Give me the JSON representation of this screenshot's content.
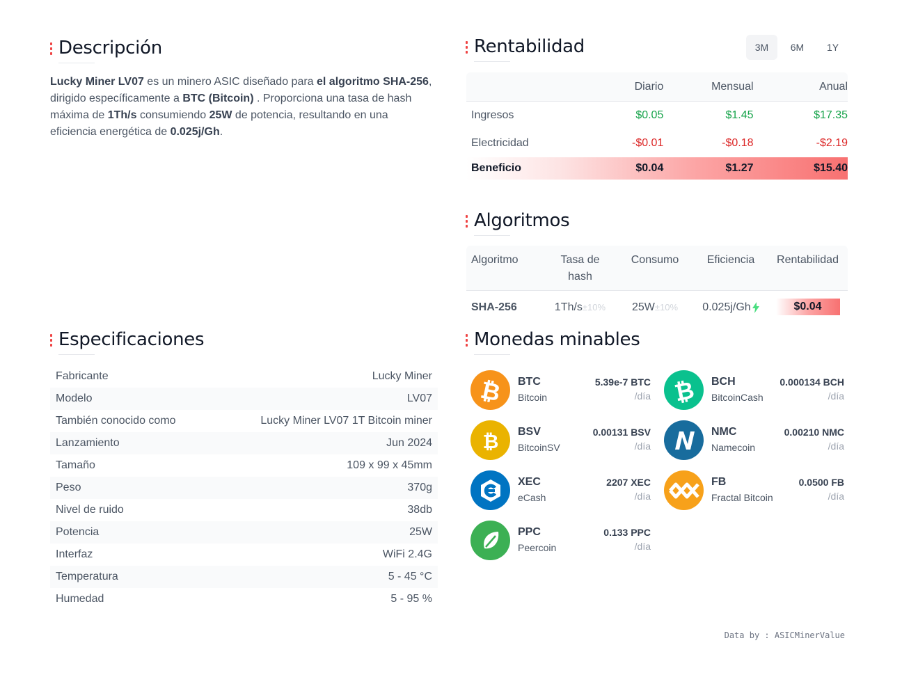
{
  "descripcion": {
    "title": "Descripción",
    "p1_bold": "Lucky Miner LV07",
    "p2": " es un minero ASIC diseñado para ",
    "p3_bold": "el algoritmo SHA-256",
    "p4": ", dirigido específicamente a ",
    "p5_bold": "BTC (Bitcoin)",
    "p6": " . Proporciona una tasa de hash máxima de ",
    "p7_bold": "1Th/s",
    "p8": " consumiendo ",
    "p9_bold": "25W",
    "p10": " de potencia, resultando en una eficiencia energética de ",
    "p11_bold": "0.025j/Gh",
    "p12": "."
  },
  "rentabilidad": {
    "title": "Rentabilidad",
    "periods": [
      "3M",
      "6M",
      "1Y"
    ],
    "active_period": "3M",
    "headers": [
      "",
      "Diario",
      "Mensual",
      "Anual"
    ],
    "rows": [
      {
        "label": "Ingresos",
        "daily": "$0.05",
        "monthly": "$1.45",
        "annual": "$17.35"
      },
      {
        "label": "Electricidad",
        "daily": "-$0.01",
        "monthly": "-$0.18",
        "annual": "-$2.19"
      },
      {
        "label": "Beneficio",
        "daily": "$0.04",
        "monthly": "$1.27",
        "annual": "$15.40"
      }
    ]
  },
  "algoritmos": {
    "title": "Algoritmos",
    "headers": [
      "Algoritmo",
      "Tasa de hash",
      "Consumo",
      "Eficiencia",
      "Rentabilidad"
    ],
    "row": {
      "name": "SHA-256",
      "hashrate": "1Th/s",
      "hashrate_tol": "±10%",
      "power": "25W",
      "power_tol": "±10%",
      "efficiency": "0.025j/Gh",
      "profit": "$0.04"
    }
  },
  "especificaciones": {
    "title": "Especificaciones",
    "rows": [
      {
        "label": "Fabricante",
        "value": "Lucky Miner"
      },
      {
        "label": "Modelo",
        "value": "LV07"
      },
      {
        "label": "También conocido como",
        "value": "Lucky Miner LV07 1T Bitcoin miner"
      },
      {
        "label": "Lanzamiento",
        "value": "Jun 2024"
      },
      {
        "label": "Tamaño",
        "value": "109 x 99 x 45mm"
      },
      {
        "label": "Peso",
        "value": "370g"
      },
      {
        "label": "Nivel de ruido",
        "value": "38db"
      },
      {
        "label": "Potencia",
        "value": "25W"
      },
      {
        "label": "Interfaz",
        "value": "WiFi 2.4G"
      },
      {
        "label": "Temperatura",
        "value": "5 - 45 °C"
      },
      {
        "label": "Humedad",
        "value": "5 - 95 %"
      }
    ]
  },
  "monedas": {
    "title": "Monedas minables",
    "per_day": "/día",
    "coins": [
      {
        "symbol": "BTC",
        "name": "Bitcoin",
        "amount": "5.39e-7 BTC",
        "color": "#f7931a",
        "icon": "bitcoin-icon"
      },
      {
        "symbol": "BCH",
        "name": "BitcoinCash",
        "amount": "0.000134 BCH",
        "color": "#0ac18e",
        "icon": "bitcoin-cash-icon"
      },
      {
        "symbol": "BSV",
        "name": "BitcoinSV",
        "amount": "0.00131 BSV",
        "color": "#eab300",
        "icon": "bitcoin-sv-icon"
      },
      {
        "symbol": "NMC",
        "name": "Namecoin",
        "amount": "0.00210 NMC",
        "color": "#186c9d",
        "icon": "namecoin-icon"
      },
      {
        "symbol": "XEC",
        "name": "eCash",
        "amount": "2207 XEC",
        "color": "#0074c2",
        "icon": "ecash-icon"
      },
      {
        "symbol": "FB",
        "name": "Fractal Bitcoin",
        "amount": "0.0500 FB",
        "color": "#f7a11a",
        "icon": "fractal-bitcoin-icon"
      },
      {
        "symbol": "PPC",
        "name": "Peercoin",
        "amount": "0.133 PPC",
        "color": "#3cb054",
        "icon": "peercoin-icon"
      }
    ]
  },
  "footer": {
    "text": "Data by : ASICMinerValue"
  }
}
